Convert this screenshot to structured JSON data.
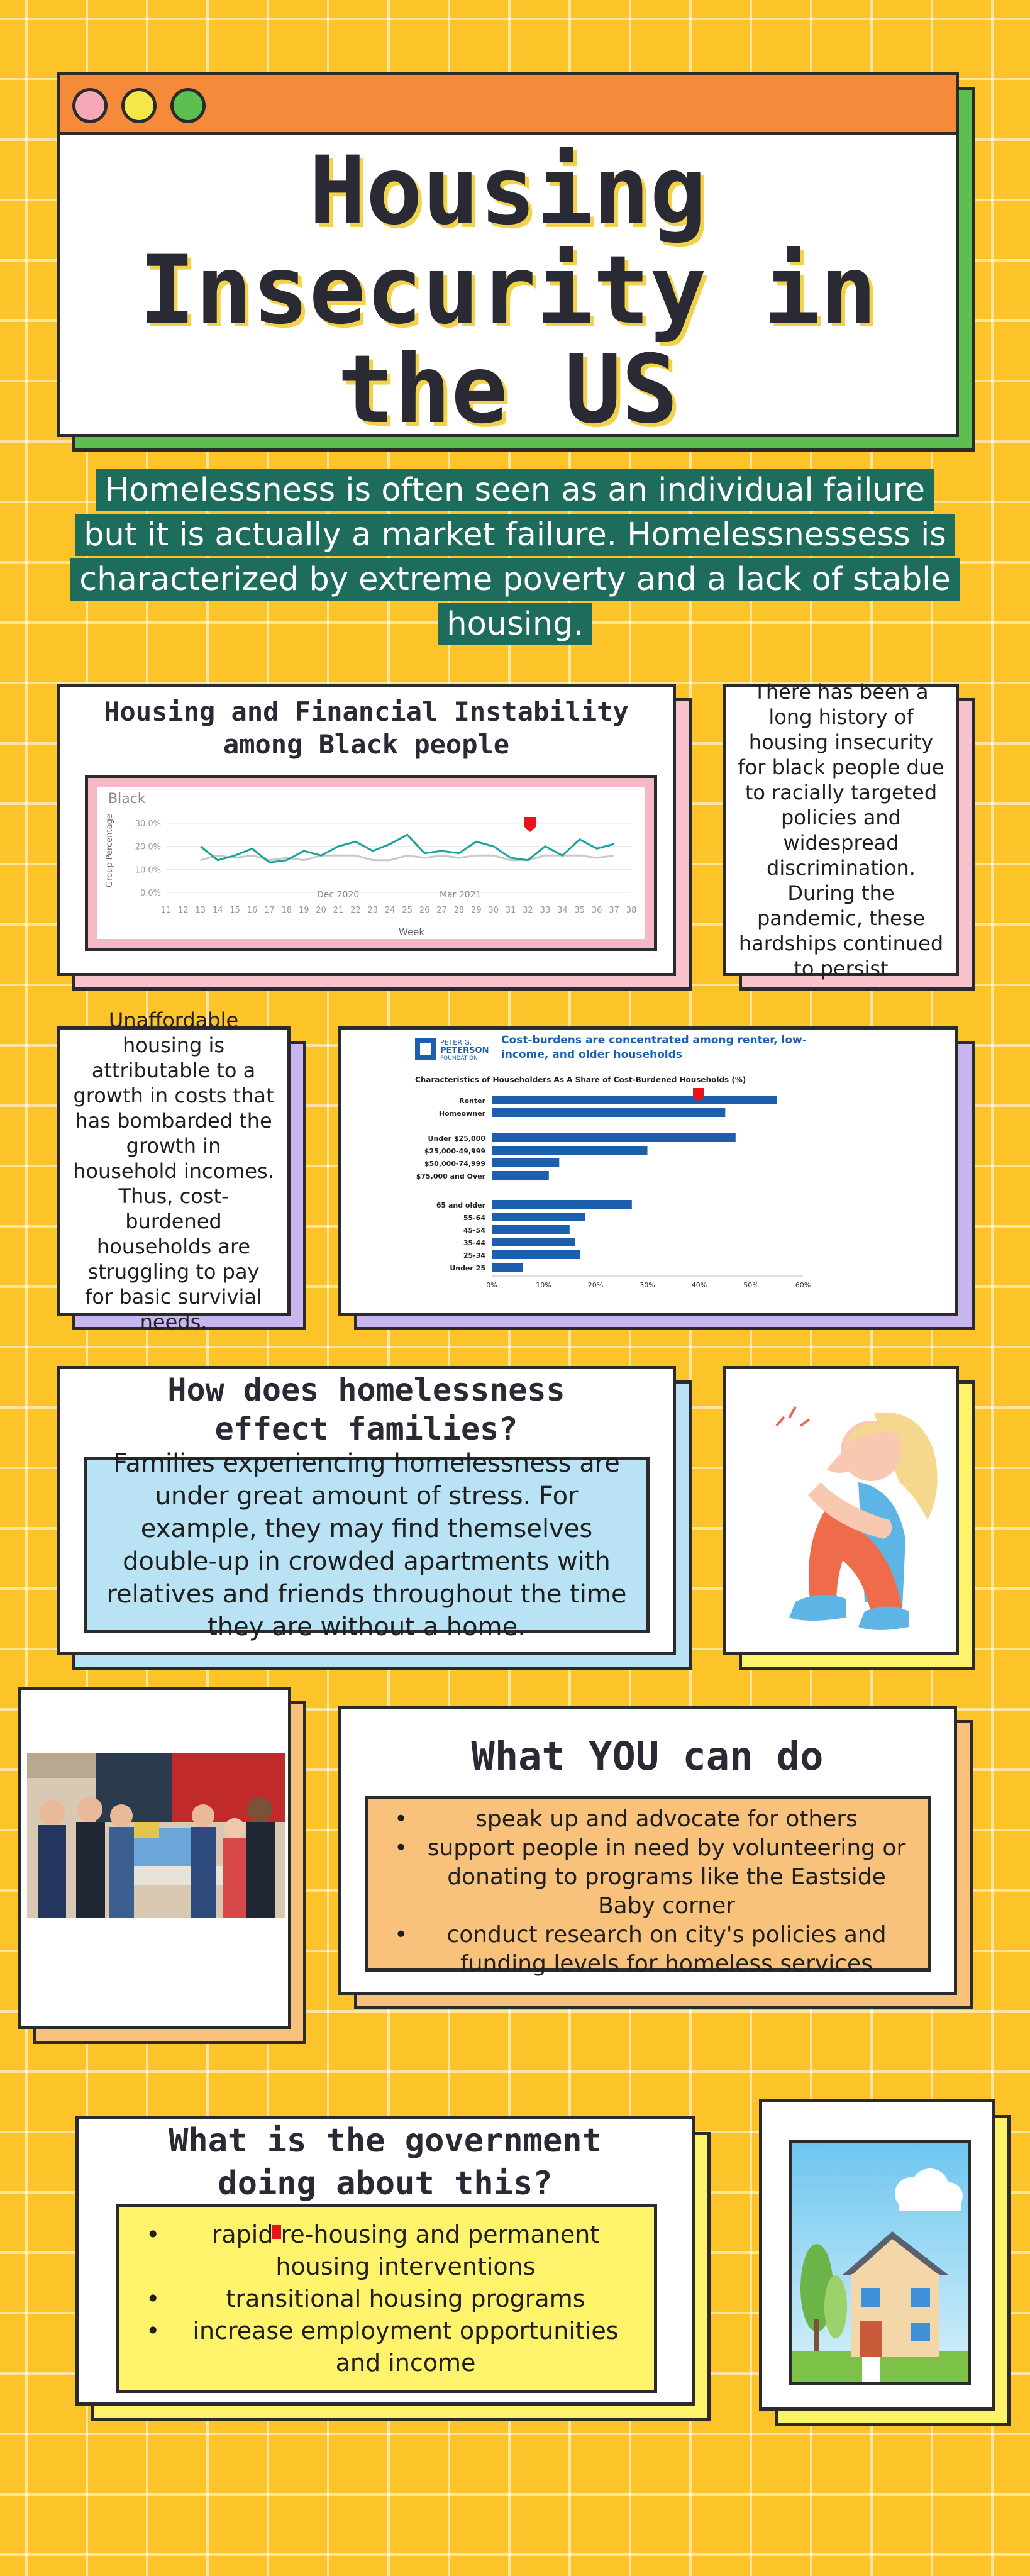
{
  "title": {
    "lines": [
      "Housing",
      "Insecurity in",
      "the US"
    ],
    "dot_colors": [
      "#f7a8b8",
      "#f5e64a",
      "#5cbf4f"
    ]
  },
  "intro": "Homelessness is often seen as an individual failure but it is actually a market failure. Homelessnessess is characterized by extreme poverty and a lack of stable housing.",
  "chart1": {
    "heading": "Housing and Financial Instability among Black people",
    "chart_data": {
      "type": "line",
      "title": "Black",
      "xlabel": "Week",
      "ylabel": "Group Percentage",
      "x": [
        "11",
        "12",
        "13",
        "14",
        "15",
        "16",
        "17",
        "18",
        "19",
        "20",
        "21",
        "22",
        "23",
        "24",
        "25",
        "26",
        "27",
        "28",
        "29",
        "30",
        "31",
        "32",
        "33",
        "34",
        "35",
        "36",
        "37",
        "38"
      ],
      "ylim": [
        0,
        30
      ],
      "yticks": [
        "30.0%",
        "20.0%",
        "10.0%",
        "0.0%"
      ],
      "annotations": [
        "Dec 2020",
        "Mar 2021"
      ],
      "series": [
        {
          "values": [
            null,
            null,
            20,
            14,
            16,
            19,
            13,
            14,
            18,
            16,
            20,
            22,
            18,
            21,
            25,
            17,
            18,
            17,
            22,
            20,
            15,
            14,
            20,
            16,
            23,
            19,
            21,
            null
          ],
          "color": "#1aa39a"
        },
        {
          "values": [
            null,
            null,
            14,
            16,
            15,
            16,
            14,
            15,
            14,
            16,
            16,
            16,
            14,
            14,
            16,
            15,
            16,
            15,
            16,
            16,
            14,
            14,
            16,
            16,
            16,
            15,
            16,
            null
          ],
          "color": "#c8c8c8"
        }
      ]
    }
  },
  "history_note": "There has been a long history of housing insecurity for black people due to racially targeted policies and widespread discrimination. During the pandemic, these hardships continued to persist",
  "afford_note": "Unaffordable housing is attributable to a growth in costs that has bombarded the growth in household incomes. Thus, cost-burdened households are struggling to pay for basic survivial needs.",
  "chart2": {
    "logo_top": "PETER G.",
    "logo_main": "PETERSON",
    "logo_sub": "FOUNDATION",
    "heading": "Cost-burdens are concentrated among renter, low-income, and older households",
    "chart_data": {
      "type": "bar",
      "title": "Characteristics of Householders As A Share of Cost-Burdened Households (%)",
      "orientation": "horizontal",
      "xlim": [
        0,
        60
      ],
      "xticks": [
        "0%",
        "10%",
        "20%",
        "30%",
        "40%",
        "50%",
        "60%"
      ],
      "categories": [
        "Renter",
        "Homeowner",
        "Under $25,000",
        "$25,000-49,999",
        "$50,000-74,999",
        "$75,000 and Over",
        "65 and older",
        "55-64",
        "45-54",
        "35-44",
        "25-34",
        "Under 25"
      ],
      "values": [
        55,
        45,
        47,
        30,
        13,
        11,
        27,
        18,
        15,
        16,
        17,
        6
      ]
    }
  },
  "families": {
    "heading": "How does homelessness effect families?",
    "body": "Families experiencing homelessness are under great amount of stress. For example, they may find themselves double-up in crowded apartments with relatives and friends throughout the time they are without a home."
  },
  "you_can_do": {
    "heading": "What YOU can do",
    "items": [
      "speak up and advocate for others",
      "support people in need by volunteering or donating to programs like the Eastside Baby corner",
      "conduct research on city's policies and funding levels for homeless services"
    ]
  },
  "government": {
    "heading": "What is the government doing about this?",
    "items": [
      "rapid re-housing and permanent housing interventions",
      "transitional housing programs",
      "increase employment opportunities and income"
    ]
  },
  "colors": {
    "background": "#fdc42a",
    "green_shadow": "#5cbf4f",
    "pink_shadow": "#f7c3cc",
    "purple_shadow": "#c9b6ee",
    "blue_shadow": "#b9e3f5",
    "yellow_shadow": "#fff36b",
    "orange_shadow": "#f8c27c",
    "teal_band": "#1e6d5c"
  },
  "icons": {
    "stressed_person": "stressed-person-illustration",
    "volunteers_photo": "volunteers-photo",
    "house": "house-illustration"
  }
}
